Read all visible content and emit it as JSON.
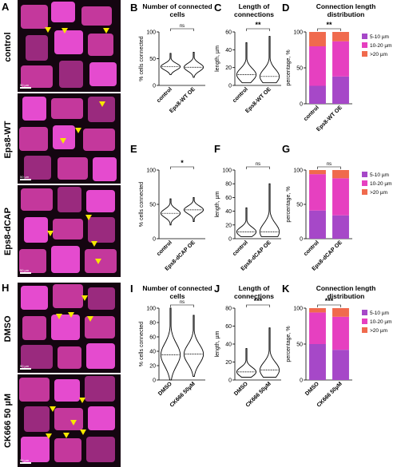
{
  "panel_letters": {
    "A": "A",
    "B": "B",
    "C": "C",
    "D": "D",
    "E": "E",
    "F": "F",
    "G": "G",
    "H": "H",
    "I": "I",
    "J": "J",
    "K": "K"
  },
  "image_rows": {
    "control": "control",
    "eps8wt": "Eps8-WT",
    "eps8dcap": "Eps8-dCAP",
    "dmso": "DMSO",
    "ck666": "CK666 50 µM"
  },
  "scale_label": "50 µm",
  "colors": {
    "magenta": "#e040c8",
    "orange": "#f06a4d",
    "pink": "#e640c0",
    "purple": "#a648c8",
    "arrow": "#f5e800"
  },
  "legend": [
    "5-10 µm",
    "10-20 µm",
    ">20 µm"
  ],
  "chart_data": [
    {
      "id": "B",
      "type": "violin",
      "title": "Number of connected cells",
      "ylabel": "% cells connected",
      "categories": [
        "control",
        "Eps8-WT OE"
      ],
      "ylim": [
        0,
        100
      ],
      "yticks": [
        0,
        50,
        100
      ],
      "significance": "ns",
      "medians": [
        35,
        34
      ],
      "ranges": [
        [
          20,
          60
        ],
        [
          15,
          62
        ]
      ]
    },
    {
      "id": "C",
      "type": "violin",
      "title": "Length of connections",
      "ylabel": "length, µm",
      "categories": [
        "control",
        "Eps8-WT OE"
      ],
      "ylim": [
        0,
        60
      ],
      "yticks": [
        0,
        20,
        40,
        60
      ],
      "significance": "**",
      "medians": [
        12,
        10
      ],
      "ranges": [
        [
          3,
          48
        ],
        [
          3,
          55
        ]
      ]
    },
    {
      "id": "D",
      "type": "bar",
      "stacked": true,
      "title": "Connection length distribution",
      "ylabel": "percentage, %",
      "categories": [
        "control",
        "Eps8-WT OE"
      ],
      "ylim": [
        0,
        100
      ],
      "yticks": [
        0,
        50,
        100
      ],
      "significance": "**",
      "series": [
        {
          "name": "5-10 µm",
          "values": [
            25,
            38
          ]
        },
        {
          "name": "10-20 µm",
          "values": [
            55,
            49
          ]
        },
        {
          "name": ">20 µm",
          "values": [
            20,
            13
          ]
        }
      ]
    },
    {
      "id": "E",
      "type": "violin",
      "ylabel": "% cells connected",
      "categories": [
        "control",
        "Eps8-dCAP OE"
      ],
      "ylim": [
        0,
        100
      ],
      "yticks": [
        0,
        50,
        100
      ],
      "significance": "*",
      "medians": [
        37,
        42
      ],
      "ranges": [
        [
          20,
          58
        ],
        [
          25,
          60
        ]
      ]
    },
    {
      "id": "F",
      "type": "violin",
      "ylabel": "length, µm",
      "categories": [
        "control",
        "Eps8-dCAP OE"
      ],
      "ylim": [
        0,
        100
      ],
      "yticks": [
        0,
        20,
        40,
        60,
        80,
        100
      ],
      "significance": "ns",
      "medians": [
        10,
        10
      ],
      "ranges": [
        [
          3,
          45
        ],
        [
          3,
          80
        ]
      ]
    },
    {
      "id": "G",
      "type": "bar",
      "stacked": true,
      "ylabel": "percentage, %",
      "categories": [
        "control",
        "Eps8-dCAP OE"
      ],
      "ylim": [
        0,
        100
      ],
      "yticks": [
        0,
        50,
        100
      ],
      "significance": "ns",
      "series": [
        {
          "name": "5-10 µm",
          "values": [
            41,
            34
          ]
        },
        {
          "name": "10-20 µm",
          "values": [
            53,
            54
          ]
        },
        {
          "name": ">20 µm",
          "values": [
            6,
            12
          ]
        }
      ]
    },
    {
      "id": "I",
      "type": "violin",
      "title": "Number of connected cells",
      "ylabel": "% cells connected",
      "categories": [
        "DMSO",
        "CK666 50µM"
      ],
      "ylim": [
        0,
        100
      ],
      "yticks": [
        0,
        20,
        40,
        60,
        80,
        100
      ],
      "significance": "ns",
      "medians": [
        35,
        36
      ],
      "ranges": [
        [
          0,
          100
        ],
        [
          5,
          90
        ]
      ]
    },
    {
      "id": "J",
      "type": "violin",
      "title": "Length of connections",
      "ylabel": "length, µm",
      "categories": [
        "DMSO",
        "CK666 50µM"
      ],
      "ylim": [
        0,
        80
      ],
      "yticks": [
        0,
        20,
        40,
        60,
        80
      ],
      "significance": "***",
      "medians": [
        9,
        11
      ],
      "ranges": [
        [
          3,
          35
        ],
        [
          3,
          58
        ]
      ]
    },
    {
      "id": "K",
      "type": "bar",
      "stacked": true,
      "title": "Connection length distribution",
      "ylabel": "percentage, %",
      "categories": [
        "DMSO",
        "CK666 50µM"
      ],
      "ylim": [
        0,
        100
      ],
      "yticks": [
        0,
        50,
        100
      ],
      "significance": "***",
      "series": [
        {
          "name": "5-10 µm",
          "values": [
            50,
            42
          ]
        },
        {
          "name": "10-20 µm",
          "values": [
            44,
            46
          ]
        },
        {
          "name": ">20 µm",
          "values": [
            6,
            12
          ]
        }
      ]
    }
  ]
}
